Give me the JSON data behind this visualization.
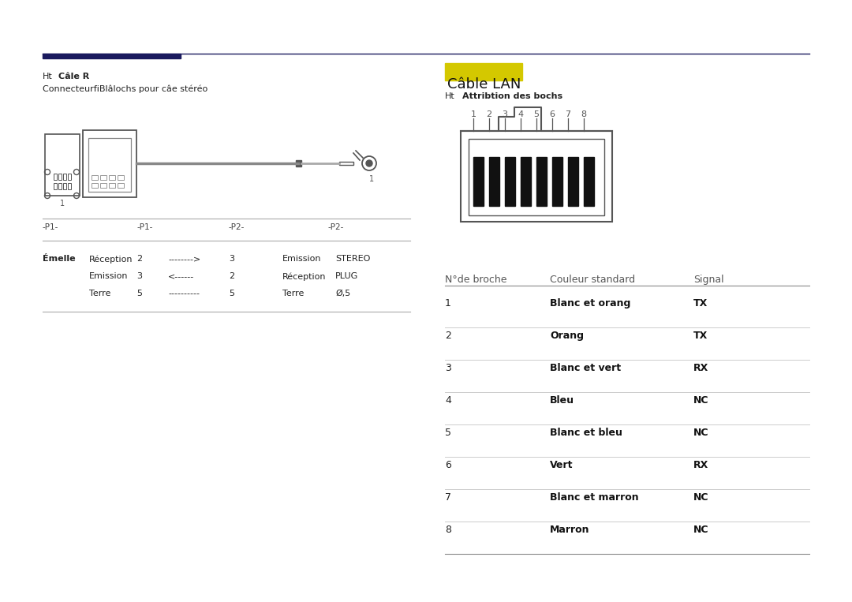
{
  "bg_color": "#ffffff",
  "header_line_color": "#1a1a5e",
  "right_title": "Câble LAN",
  "right_title_bg": "#d4c800",
  "table_header": [
    "N°de broche",
    "Couleur standard",
    "Signal"
  ],
  "table_rows": [
    [
      "1",
      "Blanc et orang",
      "TX"
    ],
    [
      "2",
      "Orang",
      "TX"
    ],
    [
      "3",
      "Blanc et vert",
      "RX"
    ],
    [
      "4",
      "Bleu",
      "NC"
    ],
    [
      "5",
      "Blanc et bleu",
      "NC"
    ],
    [
      "6",
      "Vert",
      "RX"
    ],
    [
      "7",
      "Blanc et marron",
      "NC"
    ],
    [
      "8",
      "Marron",
      "NC"
    ]
  ],
  "connector_rows": [
    [
      "Émelle",
      "Réception",
      "2",
      "-------->",
      "3",
      "Emission",
      "STEREO"
    ],
    [
      "",
      "Emission",
      "3",
      "<------",
      "2",
      "Réception",
      "PLUG"
    ],
    [
      "",
      "Terre",
      "5",
      "----------",
      "5",
      "Terre",
      "Ø,5"
    ]
  ],
  "line_color": "#aaaaaa",
  "text_color": "#222222",
  "dim_color": "#555555"
}
